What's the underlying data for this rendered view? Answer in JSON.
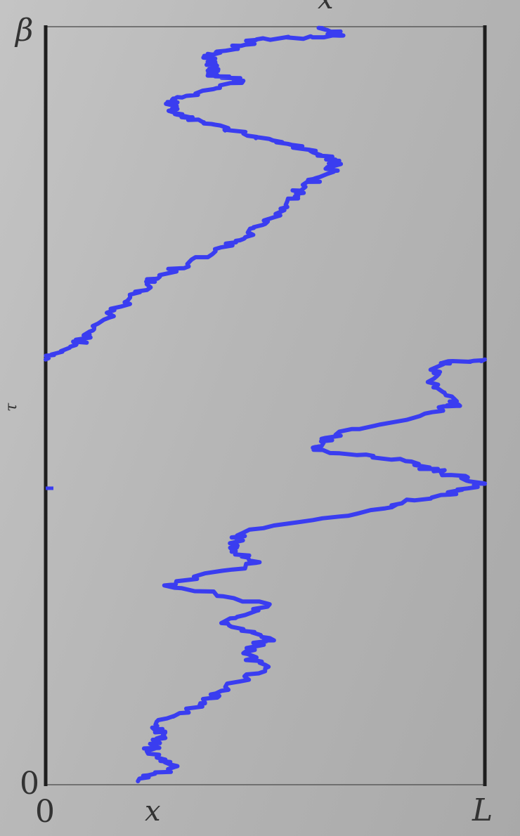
{
  "labels": {
    "beta": "β",
    "x_top": "x",
    "tau": "τ",
    "zero_y": "0",
    "zero_x": "0",
    "x_bottom": "x",
    "L": "L"
  },
  "colors": {
    "path": "#3a3df0",
    "frame": "#1e1e1e",
    "background": "#b8b8b8"
  },
  "paths": [
    {
      "name": "worldline-upper",
      "points": [
        [
          0,
          0.56
        ],
        [
          0.07,
          0.58
        ],
        [
          0.11,
          0.6
        ],
        [
          0.17,
          0.63
        ],
        [
          0.23,
          0.66
        ],
        [
          0.26,
          0.67
        ],
        [
          0.38,
          0.7
        ],
        [
          0.45,
          0.72
        ],
        [
          0.5,
          0.74
        ],
        [
          0.55,
          0.77
        ],
        [
          0.59,
          0.79
        ],
        [
          0.65,
          0.81
        ],
        [
          0.66,
          0.82
        ],
        [
          0.64,
          0.83
        ],
        [
          0.56,
          0.845
        ],
        [
          0.45,
          0.86
        ],
        [
          0.36,
          0.875
        ],
        [
          0.3,
          0.885
        ],
        [
          0.29,
          0.9
        ],
        [
          0.32,
          0.91
        ],
        [
          0.45,
          0.93
        ],
        [
          0.37,
          0.94
        ],
        [
          0.39,
          0.95
        ],
        [
          0.37,
          0.96
        ],
        [
          0.41,
          0.97
        ],
        [
          0.48,
          0.985
        ],
        [
          0.67,
          0.99
        ],
        [
          0.63,
          1.0
        ]
      ]
    },
    {
      "name": "worldline-lower",
      "points": [
        [
          0.21,
          0
        ],
        [
          0.3,
          0.02
        ],
        [
          0.23,
          0.04
        ],
        [
          0.27,
          0.06
        ],
        [
          0.25,
          0.075
        ],
        [
          0.35,
          0.1
        ],
        [
          0.4,
          0.12
        ],
        [
          0.5,
          0.15
        ],
        [
          0.45,
          0.17
        ],
        [
          0.51,
          0.19
        ],
        [
          0.4,
          0.21
        ],
        [
          0.51,
          0.235
        ],
        [
          0.27,
          0.26
        ],
        [
          0.48,
          0.29
        ],
        [
          0.42,
          0.31
        ],
        [
          0.45,
          0.33
        ],
        [
          0.74,
          0.36
        ],
        [
          0.9,
          0.38
        ],
        [
          1.0,
          0.395
        ],
        [
          0.9,
          0.41
        ],
        [
          0.82,
          0.425
        ],
        [
          0.61,
          0.44
        ],
        [
          0.66,
          0.46
        ],
        [
          0.88,
          0.49
        ],
        [
          0.94,
          0.5
        ],
        [
          0.87,
          0.53
        ],
        [
          0.9,
          0.555
        ],
        [
          1.0,
          0.56
        ]
      ]
    }
  ]
}
